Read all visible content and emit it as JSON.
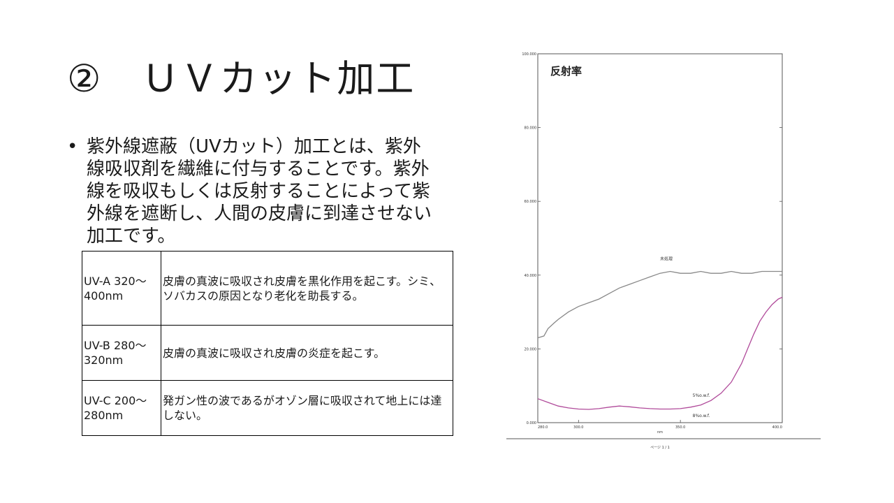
{
  "slide": {
    "title": "②　ＵＶカット加工",
    "bullet": "紫外線遮蔽（UVカット）加工とは、紫外線吸収剤を繊維に付与することです。紫外線を吸収もしくは反射することによって紫外線を遮断し、人間の皮膚に到達させない加工です。"
  },
  "table": {
    "rows": [
      {
        "band": "UV-A 320〜400nm",
        "desc": "皮膚の真波に吸収され皮膚を黒化作用を起こす。シミ、ソバカスの原因となり老化を助長する。"
      },
      {
        "band": "UV-B 280〜320nm",
        "desc": "皮膚の真波に吸収され皮膚の炎症を起こす。"
      },
      {
        "band": "UV-C 200〜280nm",
        "desc": "発ガン性の波であるがオゾン層に吸収されて地上には達しない。"
      }
    ]
  },
  "chart_data": {
    "type": "line",
    "title": "反射率",
    "xlabel": "nm",
    "xlim": [
      280,
      400
    ],
    "ylim": [
      0,
      100
    ],
    "x_ticks": [
      "280.0",
      "300.0",
      "350.0",
      "400.0"
    ],
    "y_ticks": [
      "0.000",
      "20.000",
      "40.000",
      "60.000",
      "80.000",
      "100.000"
    ],
    "footer": "ページ 1 / 1",
    "grid": false,
    "series": [
      {
        "name": "未処理",
        "color": "#888888",
        "x": [
          280,
          283,
          285,
          288,
          290,
          295,
          300,
          305,
          310,
          315,
          320,
          325,
          330,
          335,
          340,
          345,
          350,
          355,
          360,
          365,
          370,
          375,
          380,
          385,
          390,
          395,
          400
        ],
        "y": [
          23,
          23.5,
          25.5,
          27,
          28,
          30,
          31.5,
          32.5,
          33.5,
          35,
          36.5,
          37.5,
          38.5,
          39.5,
          40.5,
          41,
          40.5,
          40.5,
          41,
          40.5,
          40.5,
          41,
          40.5,
          40.5,
          41,
          41,
          41
        ]
      },
      {
        "name": "5%o.w.f.",
        "color": "#b04a9a",
        "x": [
          280,
          285,
          290,
          295,
          300,
          305,
          310,
          315,
          320,
          325,
          330,
          335,
          340,
          345,
          350,
          355,
          360,
          365,
          370,
          375,
          380,
          383,
          386,
          389,
          392,
          395,
          398,
          400
        ],
        "y": [
          6.5,
          5.5,
          4.5,
          4,
          3.7,
          3.6,
          3.8,
          4.2,
          4.5,
          4.3,
          4,
          3.8,
          3.7,
          3.7,
          3.8,
          4.2,
          4.8,
          6,
          8,
          11,
          16,
          20,
          24,
          27.5,
          30,
          32,
          33.5,
          34
        ]
      }
    ],
    "annotations": [
      {
        "text": "未処理",
        "x": 340,
        "y": 44
      },
      {
        "text": "5%o.w.f.",
        "x": 356,
        "y": 7
      },
      {
        "text": "8%o.w.f.",
        "x": 356,
        "y": 1.5
      }
    ]
  }
}
